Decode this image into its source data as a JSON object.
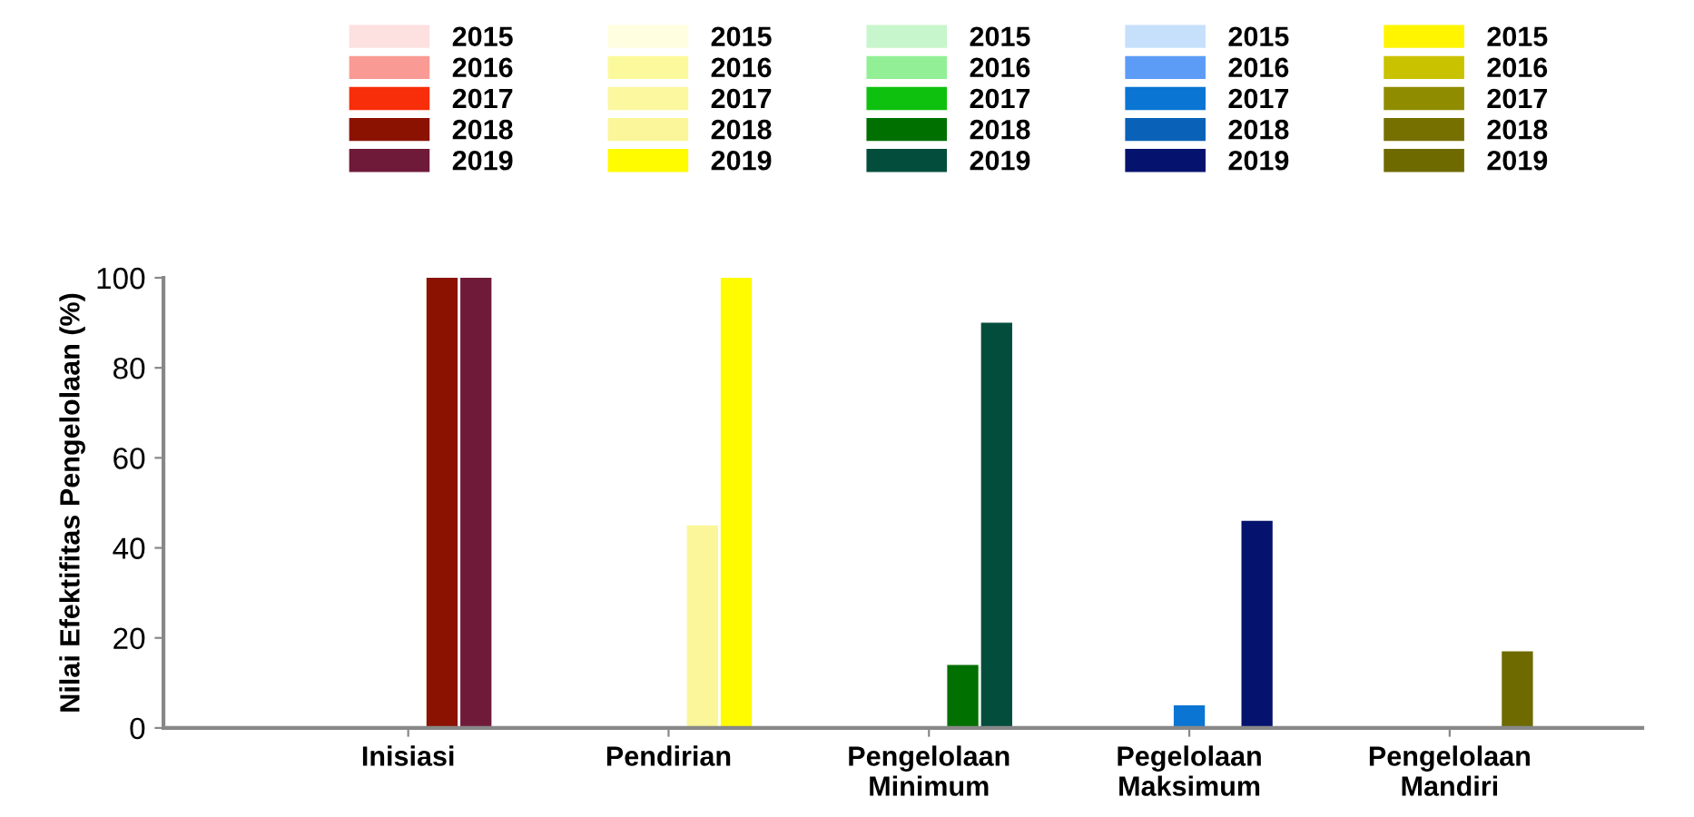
{
  "chart_data": {
    "type": "bar",
    "ylabel": "Nilai Efektifitas Pengelolaan (%)",
    "categories": [
      "Inisiasi",
      "Pendirian",
      "Pengelolaan\nMinimum",
      "Pegelolaan\nMaksimum",
      "Pengelolaan\nMandiri"
    ],
    "series": [
      {
        "name": "2015",
        "colors": [
          "#fde0e0",
          "#fffee0",
          "#c8f6cc",
          "#c6e0fb",
          "#fff500"
        ],
        "values": [
          0,
          0,
          0,
          0,
          0
        ]
      },
      {
        "name": "2016",
        "colors": [
          "#f99a94",
          "#fbf99c",
          "#93ef95",
          "#5c9cf7",
          "#c9c200"
        ],
        "values": [
          0,
          0,
          0,
          0,
          0
        ]
      },
      {
        "name": "2017",
        "colors": [
          "#f82d0a",
          "#fbf8a0",
          "#0ec10e",
          "#0a75d2",
          "#908c00"
        ],
        "values": [
          0,
          0,
          0,
          5,
          0
        ]
      },
      {
        "name": "2018",
        "colors": [
          "#8b1200",
          "#faf699",
          "#007000",
          "#0a62b8",
          "#767000"
        ],
        "values": [
          100,
          45,
          14,
          0,
          0
        ]
      },
      {
        "name": "2019",
        "colors": [
          "#701a3a",
          "#fffc00",
          "#034d3c",
          "#06136e",
          "#6e6a00"
        ],
        "values": [
          100,
          100,
          90,
          46,
          17
        ]
      }
    ],
    "ylim": [
      0,
      100
    ],
    "yticks": [
      0,
      20,
      40,
      60,
      80,
      100
    ],
    "grid": false,
    "legend": "top"
  }
}
